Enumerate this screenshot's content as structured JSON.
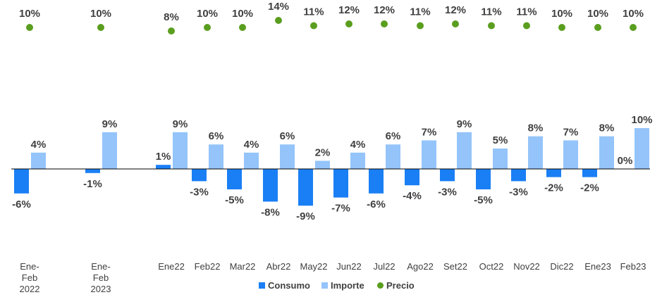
{
  "chart_data": {
    "type": "bar",
    "title": "",
    "xlabel": "",
    "ylabel": "",
    "categories": [
      [
        "Ene-",
        "Feb",
        "2022"
      ],
      [
        "Ene-",
        "Feb",
        "2023"
      ],
      [
        "Ene22"
      ],
      [
        "Feb22"
      ],
      [
        "Mar22"
      ],
      [
        "Abr22"
      ],
      [
        "May22"
      ],
      [
        "Jun22"
      ],
      [
        "Jul22"
      ],
      [
        "Ago22"
      ],
      [
        "Set22"
      ],
      [
        "Oct22"
      ],
      [
        "Nov22"
      ],
      [
        "Dic22"
      ],
      [
        "Ene23"
      ],
      [
        "Feb23"
      ]
    ],
    "series": [
      {
        "name": "Consumo",
        "kind": "bar",
        "color": "#1a7ff5",
        "values": [
          -6,
          -1,
          1,
          -3,
          -5,
          -8,
          -9,
          -7,
          -6,
          -4,
          -3,
          -5,
          -3,
          -2,
          -2,
          0
        ],
        "labels": [
          "-6%",
          "-1%",
          "1%",
          "-3%",
          "-5%",
          "-8%",
          "-9%",
          "-7%",
          "-6%",
          "-4%",
          "-3%",
          "-5%",
          "-3%",
          "-2%",
          "-2%",
          "0%"
        ]
      },
      {
        "name": "Importe",
        "kind": "bar",
        "color": "#94c4fa",
        "values": [
          4,
          9,
          9,
          6,
          4,
          6,
          2,
          4,
          6,
          7,
          9,
          5,
          8,
          7,
          8,
          10
        ],
        "labels": [
          "4%",
          "9%",
          "9%",
          "6%",
          "4%",
          "6%",
          "2%",
          "4%",
          "6%",
          "7%",
          "9%",
          "5%",
          "8%",
          "7%",
          "8%",
          "10%"
        ]
      },
      {
        "name": "Precio",
        "kind": "marker",
        "color": "#5a9e1f",
        "values": [
          10,
          10,
          8,
          10,
          10,
          14,
          11,
          12,
          12,
          11,
          12,
          11,
          11,
          10,
          10,
          10
        ],
        "labels": [
          "10%",
          "10%",
          "8%",
          "10%",
          "10%",
          "14%",
          "11%",
          "12%",
          "12%",
          "11%",
          "12%",
          "11%",
          "11%",
          "10%",
          "10%",
          "10%"
        ]
      }
    ],
    "legend_position": "bottom",
    "grid": false
  }
}
